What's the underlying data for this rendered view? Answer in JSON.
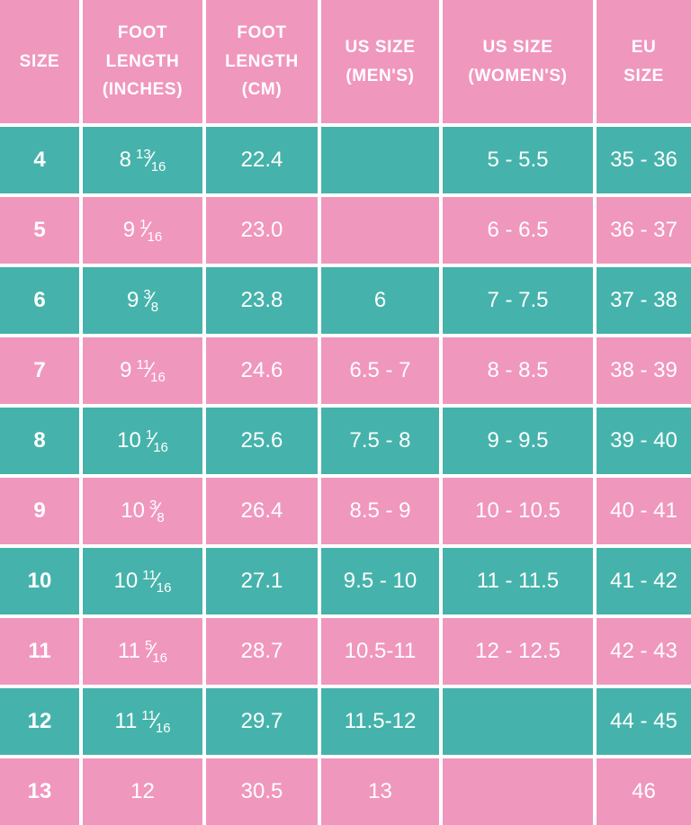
{
  "colors": {
    "teal": "#45B3AB",
    "pink": "#F097BE",
    "divider": "#FFFFFF",
    "text": "#FFFFFF"
  },
  "glyphs": {
    "fraction_slash": "⁄"
  },
  "chart_data": {
    "type": "table",
    "columns": [
      "SIZE",
      "FOOT\nLENGTH\n(INCHES)",
      "FOOT\nLENGTH\n(CM)",
      "US SIZE\n(MEN'S)",
      "US SIZE\n(WOMEN'S)",
      "EU\nSIZE"
    ],
    "rows": [
      {
        "tone": "teal",
        "size": "4",
        "inches_whole": "8",
        "inches_frac": "13/16",
        "cm": "22.4",
        "us_mens": "",
        "us_womens": "5 - 5.5",
        "eu": "35 - 36"
      },
      {
        "tone": "pink",
        "size": "5",
        "inches_whole": "9",
        "inches_frac": "1/16",
        "cm": "23.0",
        "us_mens": "",
        "us_womens": "6 - 6.5",
        "eu": "36 - 37"
      },
      {
        "tone": "teal",
        "size": "6",
        "inches_whole": "9",
        "inches_frac": "3/8",
        "cm": "23.8",
        "us_mens": "6",
        "us_womens": "7 - 7.5",
        "eu": "37 - 38"
      },
      {
        "tone": "pink",
        "size": "7",
        "inches_whole": "9",
        "inches_frac": "11/16",
        "cm": "24.6",
        "us_mens": "6.5 - 7",
        "us_womens": "8 - 8.5",
        "eu": "38 - 39"
      },
      {
        "tone": "teal",
        "size": "8",
        "inches_whole": "10",
        "inches_frac": "1/16",
        "cm": "25.6",
        "us_mens": "7.5 - 8",
        "us_womens": "9 - 9.5",
        "eu": "39 - 40"
      },
      {
        "tone": "pink",
        "size": "9",
        "inches_whole": "10",
        "inches_frac": "3/8",
        "cm": "26.4",
        "us_mens": "8.5 - 9",
        "us_womens": "10 - 10.5",
        "eu": "40 - 41"
      },
      {
        "tone": "teal",
        "size": "10",
        "inches_whole": "10",
        "inches_frac": "11/16",
        "cm": "27.1",
        "us_mens": "9.5 - 10",
        "us_womens": "11 - 11.5",
        "eu": "41 - 42"
      },
      {
        "tone": "pink",
        "size": "11",
        "inches_whole": "11",
        "inches_frac": "5/16",
        "cm": "28.7",
        "us_mens": "10.5-11",
        "us_womens": "12 - 12.5",
        "eu": "42 - 43"
      },
      {
        "tone": "teal",
        "size": "12",
        "inches_whole": "11",
        "inches_frac": "11/16",
        "cm": "29.7",
        "us_mens": "11.5-12",
        "us_womens": "",
        "eu": "44 - 45"
      },
      {
        "tone": "pink",
        "size": "13",
        "inches_whole": "12",
        "inches_frac": "",
        "cm": "30.5",
        "us_mens": "13",
        "us_womens": "",
        "eu": "46"
      }
    ]
  }
}
